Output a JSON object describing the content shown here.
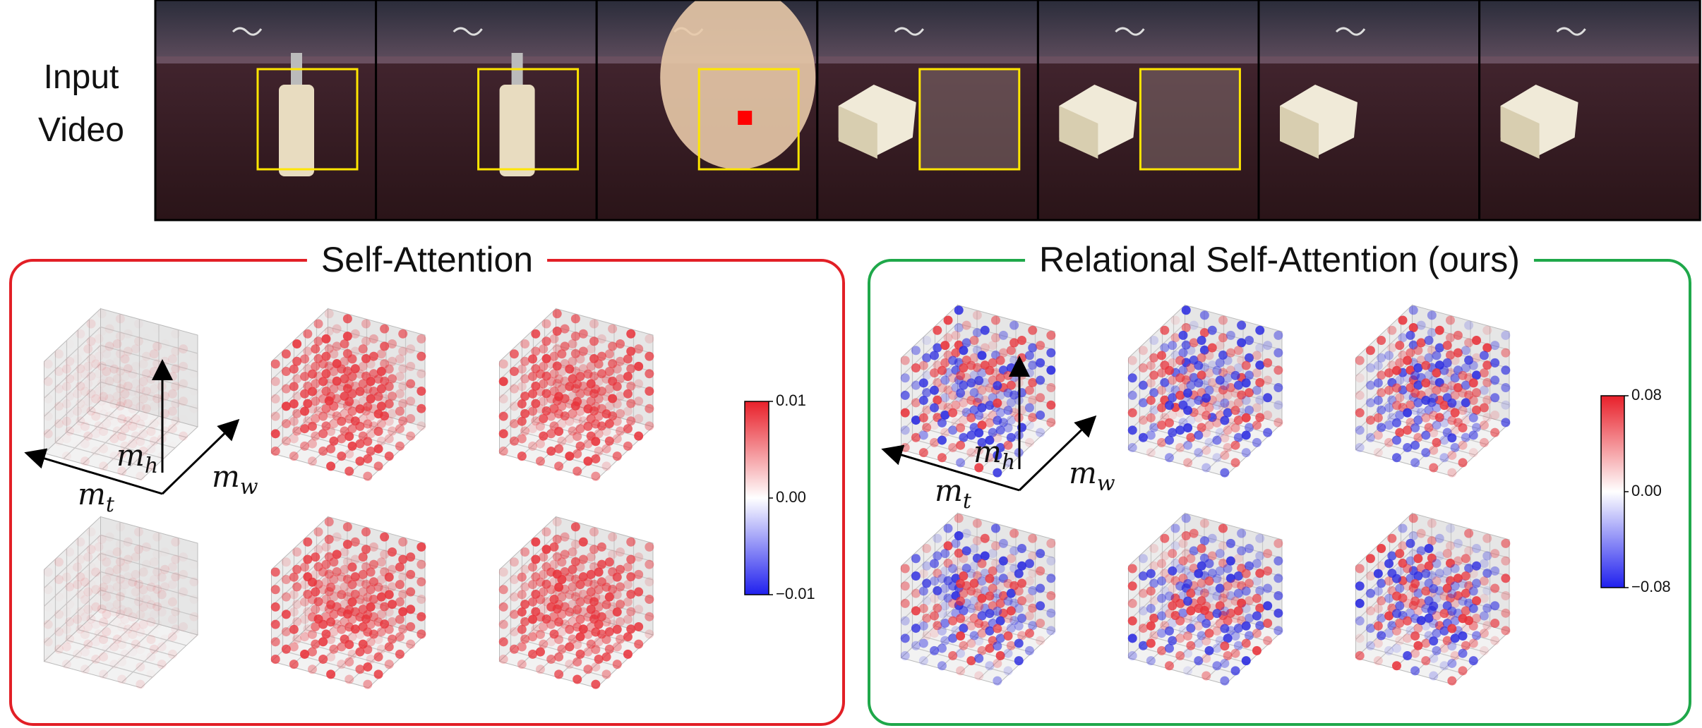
{
  "input_video": {
    "label_lines": [
      "Input",
      "Video"
    ]
  },
  "panels": [
    {
      "title": "Self-Attention",
      "colorbar": {
        "ticks": [
          "0.01",
          "0.00",
          "−0.01"
        ]
      },
      "axis_labels": {
        "t": {
          "base": "m",
          "sub": "t"
        },
        "h": {
          "base": "m",
          "sub": "h"
        },
        "w": {
          "base": "m",
          "sub": "w"
        }
      }
    },
    {
      "title": "Relational Self-Attention (ours)",
      "colorbar": {
        "ticks": [
          "0.08",
          "0.00",
          "−0.08"
        ]
      },
      "axis_labels": {
        "t": {
          "base": "m",
          "sub": "t"
        },
        "h": {
          "base": "m",
          "sub": "h"
        },
        "w": {
          "base": "m",
          "sub": "w"
        }
      }
    }
  ]
}
